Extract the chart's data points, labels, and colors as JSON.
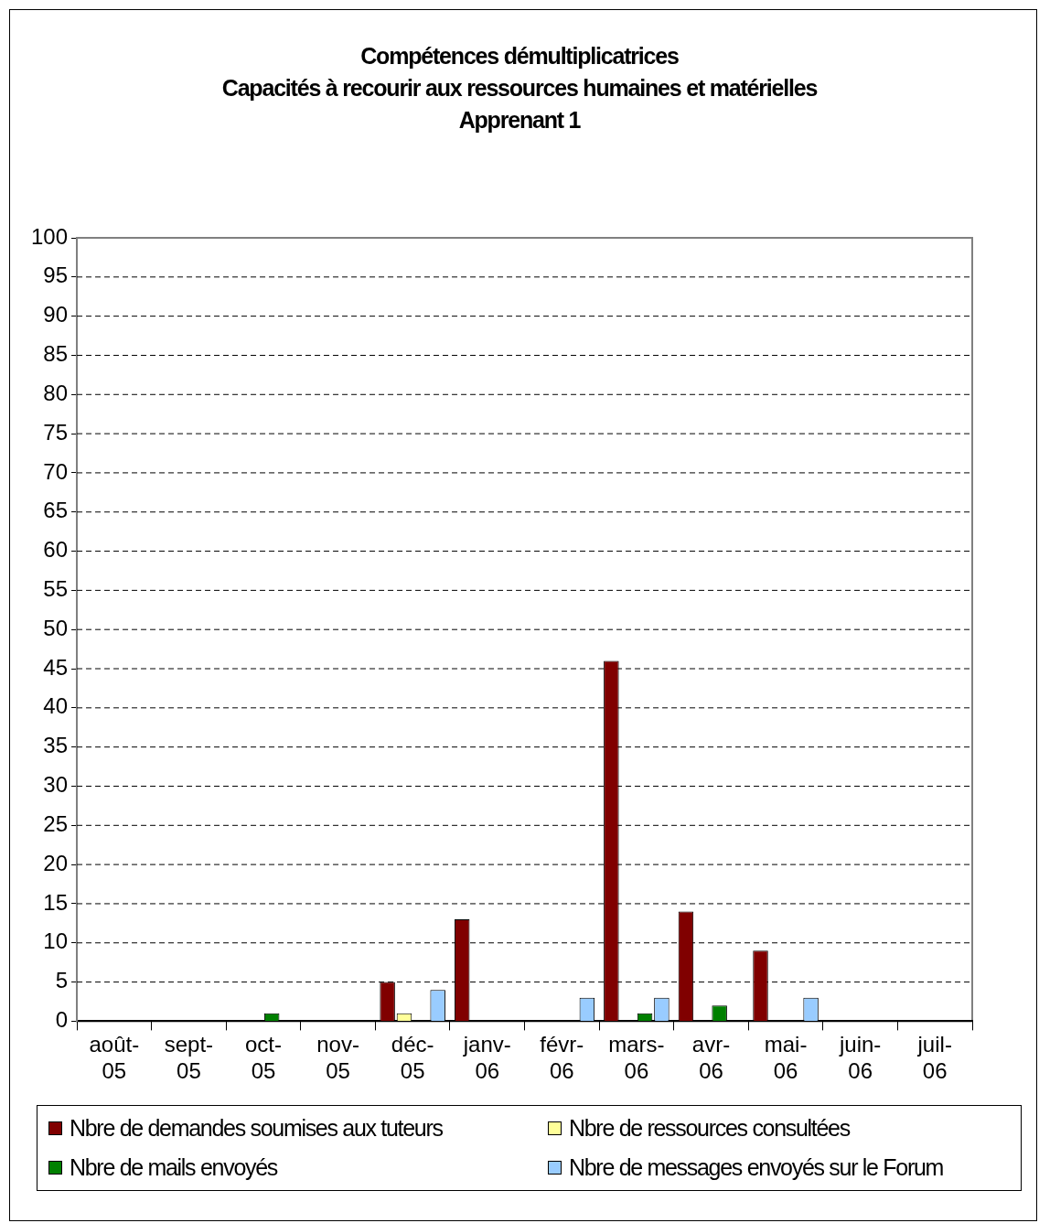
{
  "chart_data": {
    "type": "bar",
    "title": "Compétences démultiplicatrices\nCapacités à recourir aux ressources humaines et matérielles\nApprenant 1",
    "categories": [
      "août-05",
      "sept-05",
      "oct-05",
      "nov-05",
      "déc-05",
      "janv-06",
      "févr-06",
      "mars-06",
      "avr-06",
      "mai-06",
      "juin-06",
      "juil-06"
    ],
    "series": [
      {
        "name": "Nbre de demandes soumises aux tuteurs",
        "color": "#800000",
        "values": [
          null,
          null,
          null,
          null,
          5,
          13,
          null,
          46,
          14,
          9,
          null,
          null
        ]
      },
      {
        "name": "Nbre de ressources consultées",
        "color": "#ffff99",
        "values": [
          null,
          null,
          null,
          null,
          1,
          null,
          null,
          null,
          null,
          null,
          null,
          null
        ]
      },
      {
        "name": "Nbre de mails envoyés",
        "color": "#008000",
        "values": [
          null,
          null,
          1,
          null,
          null,
          null,
          null,
          1,
          2,
          null,
          null,
          null
        ]
      },
      {
        "name": "Nbre de messages envoyés sur le Forum",
        "color": "#99ccff",
        "values": [
          null,
          null,
          null,
          null,
          4,
          null,
          3,
          3,
          null,
          3,
          null,
          null
        ]
      }
    ],
    "ylim": [
      0,
      100
    ],
    "yticks": [
      0,
      5,
      10,
      15,
      20,
      25,
      30,
      35,
      40,
      45,
      50,
      55,
      60,
      65,
      70,
      75,
      80,
      85,
      90,
      95,
      100
    ],
    "grid": "y",
    "legend": "bottom"
  }
}
